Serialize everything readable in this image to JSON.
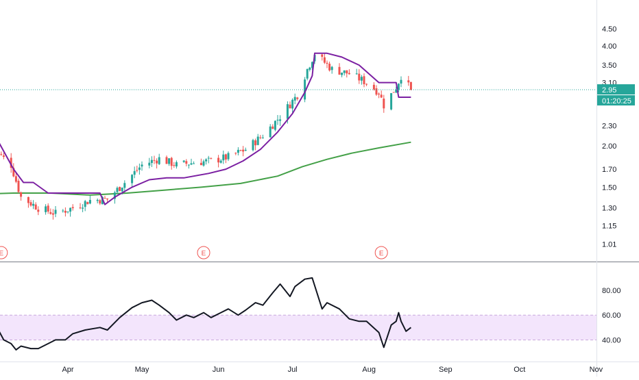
{
  "chart_data": [
    {
      "type": "candlestick",
      "panel": "price",
      "scale": "log",
      "ylim": [
        0.98,
        5.0
      ],
      "y_ticks": [
        "4.50",
        "4.00",
        "3.50",
        "3.10",
        "2.30",
        "2.00",
        "1.70",
        "1.50",
        "1.30",
        "1.15",
        "1.01"
      ],
      "x_ticks": [
        "Apr",
        "May",
        "Jun",
        "Jul",
        "Aug",
        "Sep",
        "Oct",
        "Nov"
      ],
      "last_price_label": "2.95",
      "countdown_label": "01:20:25",
      "last_price": 2.95,
      "earnings_marker_label": "E",
      "earnings_markers": [
        "2020-03-05",
        "2020-05-26",
        "2020-08-06"
      ],
      "ohlc_anchors": [
        [
          "2020-03-02",
          1.95
        ],
        [
          "2020-03-09",
          1.75
        ],
        [
          "2020-03-13",
          1.4
        ],
        [
          "2020-03-20",
          1.3
        ],
        [
          "2020-03-27",
          1.25
        ],
        [
          "2020-04-03",
          1.3
        ],
        [
          "2020-04-10",
          1.37
        ],
        [
          "2020-04-17",
          1.38
        ],
        [
          "2020-04-24",
          1.55
        ],
        [
          "2020-05-01",
          1.75
        ],
        [
          "2020-05-08",
          1.83
        ],
        [
          "2020-05-15",
          1.75
        ],
        [
          "2020-05-22",
          1.78
        ],
        [
          "2020-05-29",
          1.8
        ],
        [
          "2020-06-05",
          1.85
        ],
        [
          "2020-06-12",
          1.95
        ],
        [
          "2020-06-19",
          2.15
        ],
        [
          "2020-06-26",
          2.45
        ],
        [
          "2020-07-03",
          2.85
        ],
        [
          "2020-07-07",
          3.4
        ],
        [
          "2020-07-10",
          3.8
        ],
        [
          "2020-07-17",
          3.4
        ],
        [
          "2020-07-24",
          3.3
        ],
        [
          "2020-07-31",
          3.1
        ],
        [
          "2020-08-05",
          2.9
        ],
        [
          "2020-08-07",
          2.65
        ],
        [
          "2020-08-12",
          3.0
        ],
        [
          "2020-08-14",
          3.25
        ],
        [
          "2020-08-18",
          2.95
        ]
      ],
      "series": [
        {
          "kind": "moving-average",
          "color": "#43a047",
          "points": [
            [
              "2020-02-26",
              1.43
            ],
            [
              "2020-03-10",
              1.44
            ],
            [
              "2020-03-25",
              1.44
            ],
            [
              "2020-04-10",
              1.42
            ],
            [
              "2020-04-25",
              1.44
            ],
            [
              "2020-05-10",
              1.47
            ],
            [
              "2020-05-25",
              1.5
            ],
            [
              "2020-06-10",
              1.54
            ],
            [
              "2020-06-25",
              1.62
            ],
            [
              "2020-07-05",
              1.73
            ],
            [
              "2020-07-15",
              1.82
            ],
            [
              "2020-07-25",
              1.9
            ],
            [
              "2020-08-05",
              1.97
            ],
            [
              "2020-08-18",
              2.05
            ]
          ]
        },
        {
          "kind": "trailing-stop",
          "color": "#7b1fa2",
          "points": [
            [
              "2020-02-26",
              1.75
            ],
            [
              "2020-03-02",
              1.72
            ],
            [
              "2020-03-04",
              2.05
            ],
            [
              "2020-03-10",
              1.7
            ],
            [
              "2020-03-14",
              1.55
            ],
            [
              "2020-03-18",
              1.55
            ],
            [
              "2020-03-24",
              1.44
            ],
            [
              "2020-04-01",
              1.44
            ],
            [
              "2020-04-14",
              1.44
            ],
            [
              "2020-04-16",
              1.33
            ],
            [
              "2020-04-20",
              1.4
            ],
            [
              "2020-04-27",
              1.5
            ],
            [
              "2020-05-04",
              1.58
            ],
            [
              "2020-05-11",
              1.6
            ],
            [
              "2020-05-18",
              1.6
            ],
            [
              "2020-05-28",
              1.65
            ],
            [
              "2020-06-04",
              1.7
            ],
            [
              "2020-06-11",
              1.8
            ],
            [
              "2020-06-18",
              1.95
            ],
            [
              "2020-06-25",
              2.2
            ],
            [
              "2020-07-01",
              2.5
            ],
            [
              "2020-07-06",
              2.9
            ],
            [
              "2020-07-09",
              3.25
            ],
            [
              "2020-07-10",
              3.8
            ],
            [
              "2020-07-15",
              3.8
            ],
            [
              "2020-07-21",
              3.7
            ],
            [
              "2020-07-28",
              3.5
            ],
            [
              "2020-08-05",
              3.1
            ],
            [
              "2020-08-12",
              3.1
            ],
            [
              "2020-08-13",
              2.8
            ],
            [
              "2020-08-18",
              2.8
            ]
          ]
        }
      ]
    },
    {
      "type": "line",
      "panel": "oscillator",
      "ylim": [
        27,
        96
      ],
      "y_ticks": [
        "80.00",
        "60.00",
        "40.00"
      ],
      "band": [
        40,
        60
      ],
      "series": [
        {
          "kind": "oscillator",
          "color": "#131722",
          "points": [
            [
              "2020-02-26",
              58
            ],
            [
              "2020-03-02",
              55
            ],
            [
              "2020-03-06",
              40
            ],
            [
              "2020-03-09",
              37
            ],
            [
              "2020-03-11",
              32
            ],
            [
              "2020-03-13",
              35
            ],
            [
              "2020-03-17",
              33
            ],
            [
              "2020-03-20",
              33
            ],
            [
              "2020-03-24",
              37
            ],
            [
              "2020-03-27",
              40
            ],
            [
              "2020-03-31",
              40
            ],
            [
              "2020-04-03",
              45
            ],
            [
              "2020-04-08",
              48
            ],
            [
              "2020-04-14",
              50
            ],
            [
              "2020-04-17",
              48
            ],
            [
              "2020-04-22",
              58
            ],
            [
              "2020-04-27",
              66
            ],
            [
              "2020-05-01",
              70
            ],
            [
              "2020-05-05",
              72
            ],
            [
              "2020-05-08",
              68
            ],
            [
              "2020-05-12",
              62
            ],
            [
              "2020-05-15",
              56
            ],
            [
              "2020-05-19",
              60
            ],
            [
              "2020-05-22",
              58
            ],
            [
              "2020-05-26",
              62
            ],
            [
              "2020-05-29",
              58
            ],
            [
              "2020-06-02",
              62
            ],
            [
              "2020-06-05",
              65
            ],
            [
              "2020-06-09",
              60
            ],
            [
              "2020-06-12",
              64
            ],
            [
              "2020-06-16",
              70
            ],
            [
              "2020-06-19",
              68
            ],
            [
              "2020-06-23",
              78
            ],
            [
              "2020-06-26",
              85
            ],
            [
              "2020-06-30",
              75
            ],
            [
              "2020-07-02",
              83
            ],
            [
              "2020-07-06",
              89
            ],
            [
              "2020-07-09",
              90
            ],
            [
              "2020-07-13",
              65
            ],
            [
              "2020-07-15",
              70
            ],
            [
              "2020-07-20",
              65
            ],
            [
              "2020-07-24",
              57
            ],
            [
              "2020-07-28",
              55
            ],
            [
              "2020-07-31",
              55
            ],
            [
              "2020-08-05",
              46
            ],
            [
              "2020-08-07",
              34
            ],
            [
              "2020-08-10",
              52
            ],
            [
              "2020-08-12",
              55
            ],
            [
              "2020-08-13",
              62
            ],
            [
              "2020-08-14",
              55
            ],
            [
              "2020-08-16",
              47
            ],
            [
              "2020-08-18",
              50
            ]
          ]
        }
      ]
    }
  ]
}
